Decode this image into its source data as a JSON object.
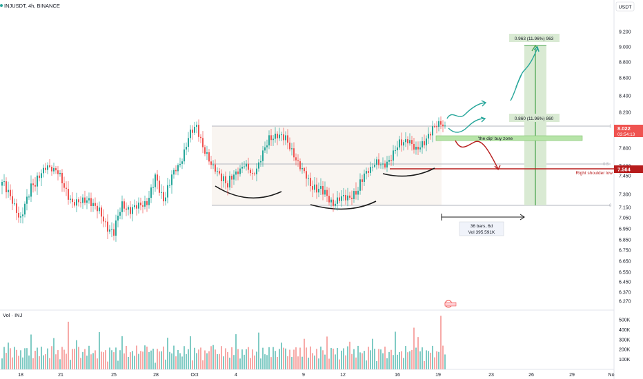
{
  "header": {
    "symbol_line": "INJUSDT, 4h, BINANCE",
    "currency": "USDT"
  },
  "volume_pane": {
    "label": "Vol · INJ"
  },
  "colors": {
    "up": "#26a69a",
    "down": "#ef5350",
    "vol_up": "#80cbc4",
    "vol_down": "#f7a9a7",
    "accent_red": "#b71c1c",
    "zone_green": "#b7e4a8",
    "target_green": "#d9ead3"
  },
  "chart_data": {
    "type": "candlestick",
    "title": "INJUSDT, 4h, BINANCE",
    "y_axis": {
      "ticks": [
        9.2,
        9.0,
        8.8,
        8.6,
        8.4,
        8.2,
        8.0,
        7.8,
        7.6,
        7.45,
        7.3,
        7.15,
        7.05,
        6.95,
        6.85,
        6.75,
        6.65,
        6.55,
        6.45,
        6.37,
        6.27
      ],
      "tick_labels": [
        "9.200",
        "9.000",
        "8.800",
        "8.600",
        "8.400",
        "8.200",
        "8.000",
        "7.800",
        "7.600",
        "7.450",
        "7.300",
        "7.150",
        "7.050",
        "6.950",
        "6.850",
        "6.750",
        "6.650",
        "6.550",
        "6.450",
        "6.370",
        "6.270"
      ]
    },
    "vol_axis": {
      "ticks": [
        500,
        400,
        300,
        200,
        100
      ],
      "tick_labels": [
        "500K",
        "400K",
        "300K",
        "200K",
        "100K"
      ]
    },
    "x_axis": {
      "tick_labels": [
        "18",
        "21",
        "25",
        "28",
        "Oct",
        "4",
        "9",
        "12",
        "16",
        "19",
        "23",
        "26",
        "29",
        "No"
      ]
    },
    "last_price": {
      "value": 8.022,
      "label": "8.022",
      "countdown": "03:54:13"
    },
    "right_shoulder_low": {
      "value": 7.564,
      "label": "7.564",
      "annotation": "Right shoulder low"
    },
    "fib_levels": [
      {
        "ratio": "1",
        "price": 8.06
      },
      {
        "ratio": "0.5",
        "price": 7.61
      },
      {
        "ratio": "0",
        "price": 7.17
      }
    ],
    "buy_zone": {
      "label": "'the dip'  buy zone",
      "low": 7.89,
      "high": 7.95
    },
    "targets": [
      {
        "label": "0.963 (11.96%) 963",
        "price": 9.0
      },
      {
        "label": "0.860 (11.96%) 860",
        "price": 8.15
      }
    ],
    "measure": {
      "line1": "36 bars, 6d",
      "line2": "Vol 395.591K"
    },
    "candle_anchors": [
      [
        0,
        7.4
      ],
      [
        5,
        7.23
      ],
      [
        9,
        7.03
      ],
      [
        14,
        7.37
      ],
      [
        18,
        7.45
      ],
      [
        22,
        7.59
      ],
      [
        26,
        7.55
      ],
      [
        30,
        7.34
      ],
      [
        34,
        7.22
      ],
      [
        38,
        7.2
      ],
      [
        42,
        7.25
      ],
      [
        46,
        7.13
      ],
      [
        50,
        6.99
      ],
      [
        54,
        6.92
      ],
      [
        58,
        7.18
      ],
      [
        62,
        7.13
      ],
      [
        66,
        7.16
      ],
      [
        70,
        7.22
      ],
      [
        74,
        7.43
      ],
      [
        78,
        7.25
      ],
      [
        82,
        7.45
      ],
      [
        86,
        7.63
      ],
      [
        90,
        7.91
      ],
      [
        94,
        8.02
      ],
      [
        97,
        7.83
      ],
      [
        101,
        7.6
      ],
      [
        105,
        7.49
      ],
      [
        109,
        7.36
      ],
      [
        113,
        7.5
      ],
      [
        117,
        7.62
      ],
      [
        121,
        7.45
      ],
      [
        125,
        7.7
      ],
      [
        129,
        7.88
      ],
      [
        133,
        7.95
      ],
      [
        137,
        7.88
      ],
      [
        141,
        7.74
      ],
      [
        144,
        7.58
      ],
      [
        148,
        7.4
      ],
      [
        152,
        7.35
      ],
      [
        156,
        7.3
      ],
      [
        160,
        7.2
      ],
      [
        164,
        7.25
      ],
      [
        168,
        7.28
      ],
      [
        172,
        7.32
      ],
      [
        176,
        7.52
      ],
      [
        180,
        7.63
      ],
      [
        184,
        7.6
      ],
      [
        188,
        7.7
      ],
      [
        192,
        7.84
      ],
      [
        196,
        7.9
      ],
      [
        200,
        7.76
      ],
      [
        204,
        7.88
      ],
      [
        208,
        7.98
      ],
      [
        212,
        8.08
      ],
      [
        214,
        8.02
      ]
    ]
  }
}
